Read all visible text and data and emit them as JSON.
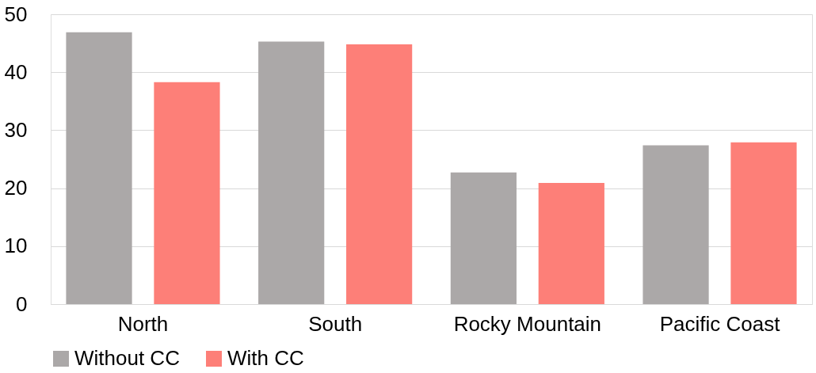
{
  "chart_data": {
    "type": "bar",
    "categories": [
      "North",
      "South",
      "Rocky Mountain",
      "Pacific Coast"
    ],
    "series": [
      {
        "name": "Without CC",
        "color": "#aba8a8",
        "values": [
          46.9,
          45.3,
          22.7,
          27.4
        ]
      },
      {
        "name": "With CC",
        "color": "#fd7f78",
        "values": [
          38.3,
          44.8,
          20.9,
          27.9
        ]
      }
    ],
    "ylim": [
      0,
      50
    ],
    "yticks": [
      0,
      10,
      20,
      30,
      40,
      50
    ],
    "grid": "y",
    "legend": "bottom"
  }
}
